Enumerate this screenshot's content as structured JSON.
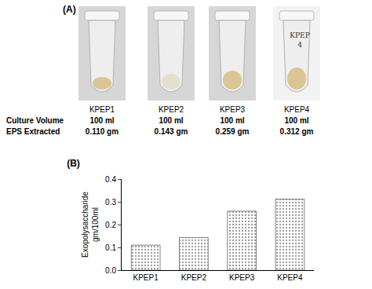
{
  "panel_a": {
    "label": "(A)",
    "tubes": [
      "KPEP1",
      "KPEP2",
      "KPEP3",
      "KPEP4"
    ],
    "tube_writing": [
      "KPEP",
      "4"
    ],
    "rows": [
      {
        "label": "Culture Volume",
        "cells": [
          "100 ml",
          "100 ml",
          "100 ml",
          "100 ml"
        ]
      },
      {
        "label": "EPS Extracted",
        "cells": [
          "0.110 gm",
          "0.143 gm",
          "0.259 gm",
          "0.312 gm"
        ]
      }
    ]
  },
  "chart_data": {
    "type": "bar",
    "title": "(B)",
    "categories": [
      "KPEP1",
      "KPEP2",
      "KPEP3",
      "KPEP4"
    ],
    "values": [
      0.11,
      0.143,
      0.259,
      0.312
    ],
    "color": "#d9d9d9",
    "ylabel": [
      "Exopolysaccharide",
      "gm/100ml"
    ],
    "ylim": [
      0,
      0.4
    ],
    "yticks": [
      {
        "value": 0,
        "label": "0.0"
      },
      0.1,
      0.2,
      0.3,
      0.4
    ],
    "grid": false
  }
}
